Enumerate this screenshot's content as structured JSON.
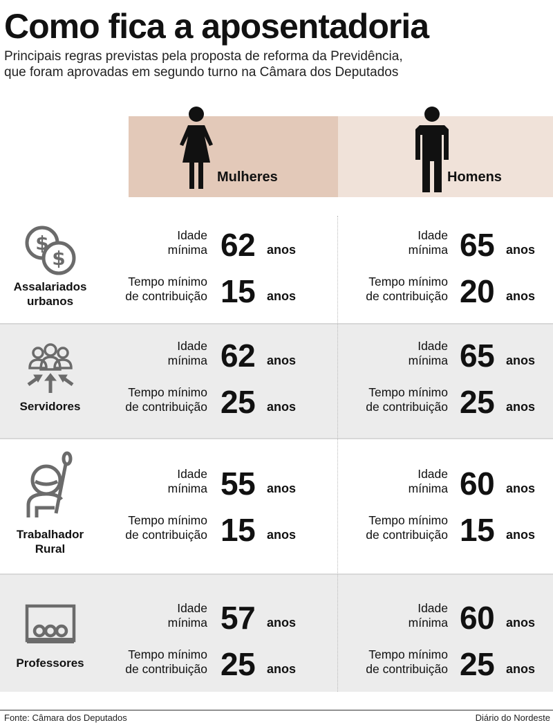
{
  "header": {
    "title": "Como fica a aposentadoria",
    "subtitle_line1": "Principais regras previstas pela proposta de reforma da Previdência,",
    "subtitle_line2": "que foram aprovadas em segundo turno na Câmara dos Deputados"
  },
  "columns": {
    "women": "Mulheres",
    "men": "Homens"
  },
  "labels": {
    "idade_1": "Idade",
    "idade_2": "mínima",
    "tempo_1": "Tempo mínimo",
    "tempo_2": "de contribuição",
    "unit": "anos"
  },
  "categories": [
    {
      "name1": "Assalariados",
      "name2": "urbanos",
      "icon": "coins-icon",
      "women": {
        "idade": "62",
        "tempo": "15"
      },
      "men": {
        "idade": "65",
        "tempo": "20"
      }
    },
    {
      "name1": "Servidores",
      "name2": "",
      "icon": "group-people-icon",
      "women": {
        "idade": "62",
        "tempo": "25"
      },
      "men": {
        "idade": "65",
        "tempo": "25"
      }
    },
    {
      "name1": "Trabalhador",
      "name2": "Rural",
      "icon": "farmer-icon",
      "women": {
        "idade": "55",
        "tempo": "15"
      },
      "men": {
        "idade": "60",
        "tempo": "15"
      }
    },
    {
      "name1": "Professores",
      "name2": "",
      "icon": "classroom-icon",
      "women": {
        "idade": "57",
        "tempo": "25"
      },
      "men": {
        "idade": "60",
        "tempo": "25"
      }
    }
  ],
  "footer": {
    "source": "Fonte: Câmara dos Deputados",
    "brand": "Diário do Nordeste"
  },
  "colors": {
    "women_header": "#e3c9b9",
    "men_header": "#f0e2d9",
    "shade": "#ececec",
    "icon_gray": "#6b6b6b"
  }
}
